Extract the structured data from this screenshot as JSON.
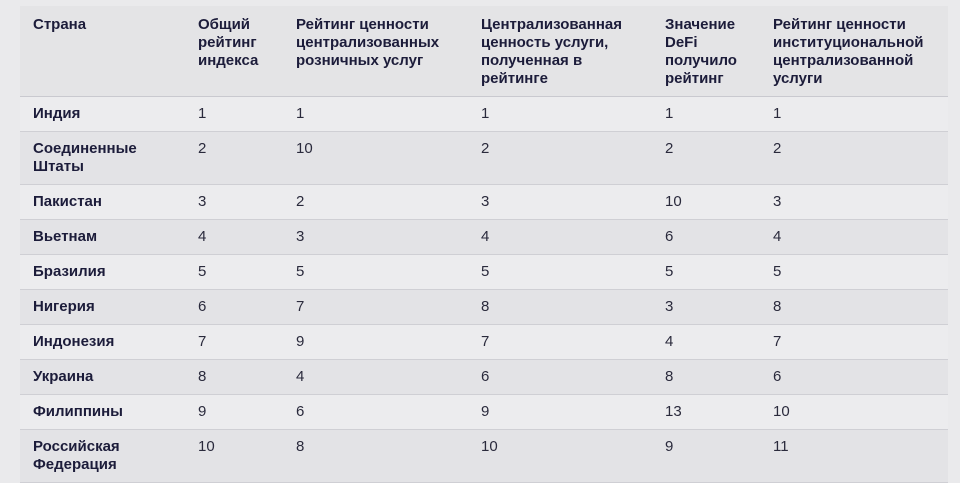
{
  "table": {
    "headers": [
      "Страна",
      "Общий рейтинг индекса",
      "Рейтинг ценности централизованных розничных услуг",
      "Централизованная ценность услуги, полученная в рейтинге",
      "Значение DeFi получило рейтинг",
      "Рейтинг ценности институциональной централизованной услуги"
    ],
    "rows": [
      [
        "Индия",
        "1",
        "1",
        "1",
        "1",
        "1"
      ],
      [
        "Соединенные Штаты",
        "2",
        "10",
        "2",
        "2",
        "2"
      ],
      [
        "Пакистан",
        "3",
        "2",
        "3",
        "10",
        "3"
      ],
      [
        "Вьетнам",
        "4",
        "3",
        "4",
        "6",
        "4"
      ],
      [
        "Бразилия",
        "5",
        "5",
        "5",
        "5",
        "5"
      ],
      [
        "Нигерия",
        "6",
        "7",
        "8",
        "3",
        "8"
      ],
      [
        "Индонезия",
        "7",
        "9",
        "7",
        "4",
        "7"
      ],
      [
        "Украина",
        "8",
        "4",
        "6",
        "8",
        "6"
      ],
      [
        "Филиппины",
        "9",
        "6",
        "9",
        "13",
        "10"
      ],
      [
        "Российская Федерация",
        "10",
        "8",
        "10",
        "9",
        "11"
      ]
    ]
  }
}
